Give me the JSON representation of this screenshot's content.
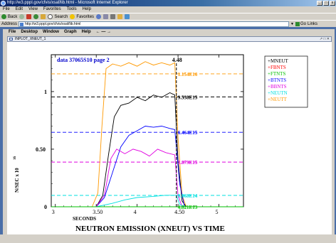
{
  "browser": {
    "title": "http://w3.pppl.gov/cfvis/xsaf/lib.html - Microsoft Internet Explorer",
    "menu": [
      "File",
      "Edit",
      "View",
      "Favorites",
      "Tools",
      "Help"
    ],
    "toolbar": {
      "back": "Back",
      "search": "Search",
      "favorites": "Favorites"
    },
    "address_label": "Address",
    "address_value": "http://w3.pppl.gov/cfvis/xsaf/lib.html",
    "go_label": "Go",
    "links_label": "Links"
  },
  "app": {
    "menu": [
      "File",
      "Desktop",
      "Window",
      "Graph",
      "Help"
    ],
    "nav_arrows": "← — →",
    "subwindow_title": "INPLOT_XNEUT_1",
    "subwindow_buttons": "↗ □ ✕"
  },
  "chart_data": {
    "type": "line",
    "title": "data 37065S10 page 2",
    "xlabel": "SECONDS",
    "ylabel": "N/SEC x 10",
    "ylabel_exponent": "16",
    "bottom_title": "NEUTRON EMISSION (XNEUT) VS TIME",
    "xlim": [
      2.95,
      5.3
    ],
    "ylim": [
      0,
      1.32
    ],
    "xticks": [
      3,
      3.5,
      4,
      4.5,
      5
    ],
    "xtick_labels": [
      "3",
      "3.50",
      "4",
      "4.50",
      "5"
    ],
    "yticks": [
      0,
      0.5,
      1
    ],
    "ytick_labels": [
      "0",
      "0.50",
      "1"
    ],
    "marker_time": 4.48,
    "marker_label": "4.48",
    "legend": [
      {
        "name": "+MNEUT",
        "color": "#000000"
      },
      {
        "name": "+FBNTS",
        "color": "#ff0000"
      },
      {
        "name": "+FTNTS",
        "color": "#00c000"
      },
      {
        "name": "+BTNTS",
        "color": "#0000ff"
      },
      {
        "name": "+BBNTS",
        "color": "#e000e0"
      },
      {
        "name": "+NEUTN",
        "color": "#00e0e0"
      },
      {
        "name": "+NEUTT",
        "color": "#ff9900"
      }
    ],
    "series": [
      {
        "name": "NEUTT",
        "color": "#ff9900",
        "dashed_value": 1.154,
        "value_label": "1.154E16",
        "points": [
          [
            3.45,
            0
          ],
          [
            3.52,
            0.12
          ],
          [
            3.57,
            0.7
          ],
          [
            3.62,
            1.2
          ],
          [
            3.7,
            1.24
          ],
          [
            3.8,
            1.22
          ],
          [
            3.9,
            1.25
          ],
          [
            4.0,
            1.22
          ],
          [
            4.1,
            1.26
          ],
          [
            4.2,
            1.23
          ],
          [
            4.3,
            1.25
          ],
          [
            4.4,
            1.23
          ],
          [
            4.46,
            1.25
          ],
          [
            4.5,
            0.6
          ],
          [
            4.55,
            0.1
          ],
          [
            4.6,
            0
          ]
        ]
      },
      {
        "name": "MNEUT",
        "color": "#000000",
        "dashed_value": 0.9538,
        "value_label": "9.538E15",
        "points": [
          [
            3.5,
            0
          ],
          [
            3.58,
            0.1
          ],
          [
            3.65,
            0.45
          ],
          [
            3.72,
            0.78
          ],
          [
            3.8,
            0.88
          ],
          [
            3.9,
            0.9
          ],
          [
            4.0,
            0.95
          ],
          [
            4.1,
            0.92
          ],
          [
            4.2,
            0.97
          ],
          [
            4.3,
            0.95
          ],
          [
            4.4,
            0.99
          ],
          [
            4.46,
            0.97
          ],
          [
            4.5,
            0.4
          ],
          [
            4.55,
            0.05
          ],
          [
            4.6,
            0
          ]
        ]
      },
      {
        "name": "BTNTS",
        "color": "#0000ff",
        "dashed_value": 0.6464,
        "value_label": "6.464E15",
        "points": [
          [
            3.5,
            0
          ],
          [
            3.6,
            0.08
          ],
          [
            3.7,
            0.3
          ],
          [
            3.8,
            0.52
          ],
          [
            3.9,
            0.62
          ],
          [
            4.0,
            0.66
          ],
          [
            4.1,
            0.7
          ],
          [
            4.2,
            0.69
          ],
          [
            4.3,
            0.7
          ],
          [
            4.4,
            0.68
          ],
          [
            4.46,
            0.67
          ],
          [
            4.52,
            0.2
          ],
          [
            4.58,
            0
          ]
        ]
      },
      {
        "name": "BBNTS",
        "color": "#e000e0",
        "dashed_value": 0.3879,
        "value_label": "3.879E15",
        "points": [
          [
            3.5,
            0
          ],
          [
            3.6,
            0.1
          ],
          [
            3.68,
            0.42
          ],
          [
            3.75,
            0.5
          ],
          [
            3.85,
            0.46
          ],
          [
            3.95,
            0.5
          ],
          [
            4.05,
            0.48
          ],
          [
            4.15,
            0.44
          ],
          [
            4.25,
            0.5
          ],
          [
            4.35,
            0.47
          ],
          [
            4.46,
            0.45
          ],
          [
            4.5,
            0.1
          ],
          [
            4.55,
            0
          ]
        ]
      },
      {
        "name": "NEUTN",
        "color": "#00e0e0",
        "dashed_value": 0.0987,
        "value_label": "9.868E14",
        "points": [
          [
            3.5,
            0
          ],
          [
            3.7,
            0.03
          ],
          [
            3.85,
            0.06
          ],
          [
            4.0,
            0.08
          ],
          [
            4.2,
            0.09
          ],
          [
            4.35,
            0.1
          ],
          [
            4.48,
            0.1
          ],
          [
            4.52,
            0.02
          ],
          [
            4.58,
            0
          ]
        ]
      },
      {
        "name": "FTNTS",
        "color": "#00c000",
        "dashed_value": 0.0,
        "value_label": "4.821E13",
        "points": [
          [
            3.0,
            0
          ],
          [
            5.3,
            0
          ]
        ]
      }
    ]
  }
}
